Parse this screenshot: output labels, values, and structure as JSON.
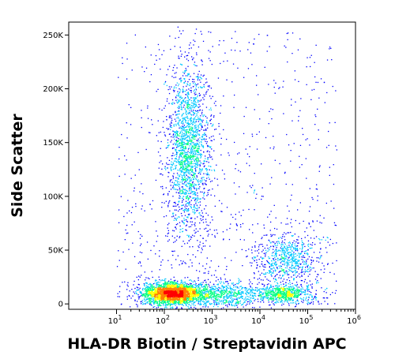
{
  "chart_data": {
    "type": "scatter",
    "subtype": "flow-cytometry density dot plot",
    "xlabel": "HLA-DR Biotin / Streptavidin APC",
    "ylabel": "Side Scatter",
    "x_scale": "biexponential log",
    "xlim": [
      1,
      1000000
    ],
    "ylim": [
      -5000,
      262000
    ],
    "x_ticks": [
      {
        "value": 10,
        "base": "10",
        "exp": "1"
      },
      {
        "value": 100,
        "base": "10",
        "exp": "2"
      },
      {
        "value": 1000,
        "base": "10",
        "exp": "3"
      },
      {
        "value": 10000,
        "base": "10",
        "exp": "4"
      },
      {
        "value": 100000,
        "base": "10",
        "exp": "5"
      },
      {
        "value": 1000000,
        "base": "10",
        "exp": "6"
      }
    ],
    "y_ticks": [
      {
        "value": 0,
        "label": "0"
      },
      {
        "value": 50000,
        "label": "50K"
      },
      {
        "value": 100000,
        "label": "100K"
      },
      {
        "value": 150000,
        "label": "150K"
      },
      {
        "value": 200000,
        "label": "200K"
      },
      {
        "value": 250000,
        "label": "250K"
      }
    ],
    "grid": false,
    "legend": "none",
    "color_scale": [
      "#0000ff",
      "#00c8ff",
      "#00ff80",
      "#ffff00",
      "#ff8000",
      "#ff0000"
    ],
    "populations": [
      {
        "center_x": 150,
        "center_y": 10000,
        "spread_log_x": 0.32,
        "spread_y": 5000,
        "density": "highest"
      },
      {
        "center_x": 1500,
        "center_y": 9000,
        "spread_log_x": 0.45,
        "spread_y": 6000,
        "density": "medium"
      },
      {
        "center_x": 30000,
        "center_y": 10000,
        "spread_log_x": 0.3,
        "spread_y": 4000,
        "density": "medium"
      },
      {
        "center_x": 320,
        "center_y": 145000,
        "spread_log_x": 0.22,
        "spread_y": 40000,
        "density": "high"
      },
      {
        "center_x": 35000,
        "center_y": 42000,
        "spread_log_x": 0.35,
        "spread_y": 12000,
        "density": "medium"
      }
    ]
  }
}
